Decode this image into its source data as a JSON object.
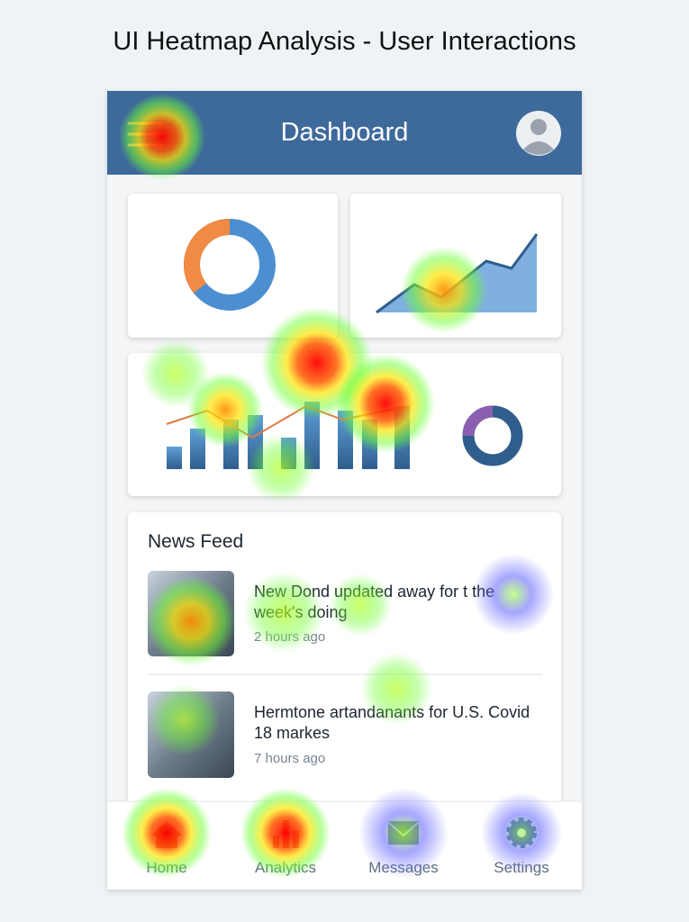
{
  "title": "UI Heatmap Analysis - User Interactions",
  "app": {
    "header_title": "Dashboard",
    "news_feed": {
      "title": "News Feed",
      "items": [
        {
          "headline": "New Dond updated away for t the week's doing",
          "time": "2 hours ago"
        },
        {
          "headline": "Hermtone artandanants for U.S. Covid 18 markes",
          "time": "7 hours ago"
        }
      ]
    },
    "nav": [
      "Home",
      "Analytics",
      "Messages",
      "Settings"
    ]
  }
}
